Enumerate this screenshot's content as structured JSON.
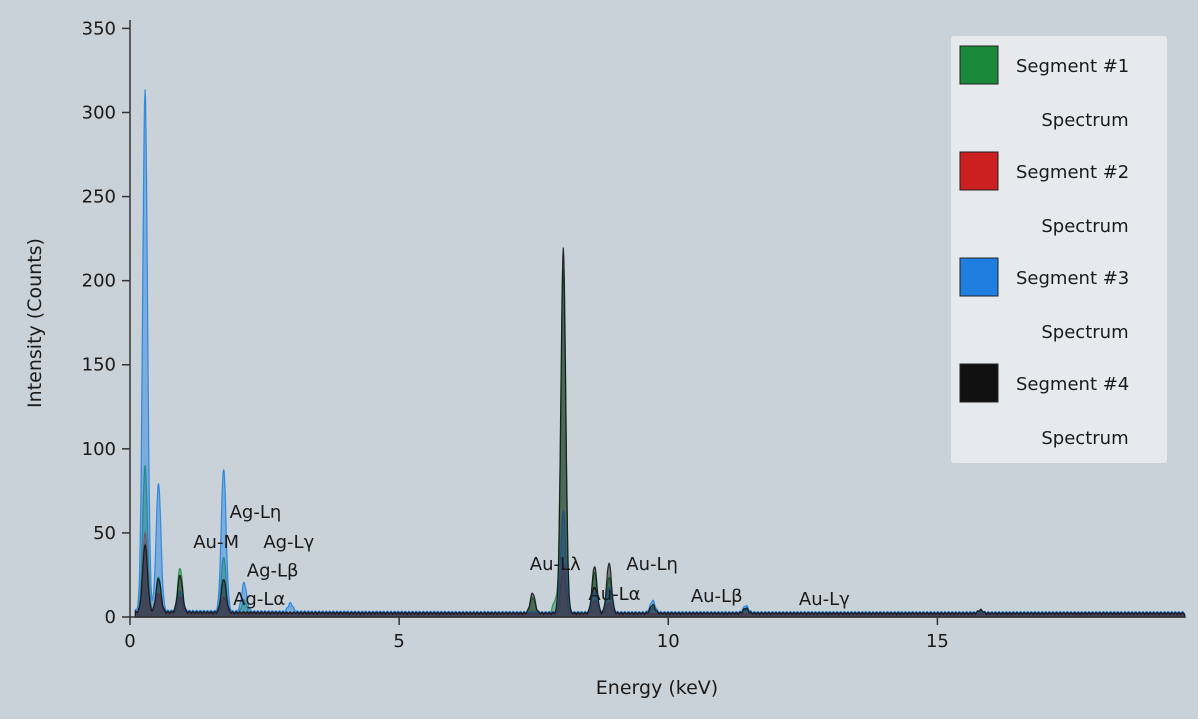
{
  "chart_data": {
    "type": "area",
    "xlabel": "Energy (keV)",
    "ylabel": "Intensity (Counts)",
    "xlim": [
      0,
      19.6
    ],
    "ylim": [
      0,
      355
    ],
    "x_ticks": [
      0,
      5,
      10,
      15
    ],
    "y_ticks": [
      0,
      50,
      100,
      150,
      200,
      250,
      300,
      350
    ],
    "grid": false,
    "legend_position": "top-right",
    "series": [
      {
        "name": "Segment #1 Spectrum",
        "color": "#1a8a3a",
        "baseline": 1,
        "peaks": [
          {
            "x": 0.28,
            "y": 88
          },
          {
            "x": 0.53,
            "y": 22
          },
          {
            "x": 0.93,
            "y": 27
          },
          {
            "x": 1.74,
            "y": 34
          },
          {
            "x": 2.12,
            "y": 8
          },
          {
            "x": 7.48,
            "y": 10
          },
          {
            "x": 7.9,
            "y": 8
          },
          {
            "x": 8.05,
            "y": 205
          },
          {
            "x": 8.63,
            "y": 25
          },
          {
            "x": 8.9,
            "y": 22
          },
          {
            "x": 9.71,
            "y": 4
          },
          {
            "x": 11.44,
            "y": 3
          },
          {
            "x": 15.8,
            "y": 2
          }
        ]
      },
      {
        "name": "Segment #2 Spectrum",
        "color": "#cc1f1f",
        "baseline": 1,
        "peaks": [
          {
            "x": 0.28,
            "y": 48
          },
          {
            "x": 0.53,
            "y": 12
          },
          {
            "x": 0.93,
            "y": 10
          },
          {
            "x": 1.74,
            "y": 10
          },
          {
            "x": 8.05,
            "y": 30
          },
          {
            "x": 8.63,
            "y": 8
          },
          {
            "x": 8.9,
            "y": 7
          }
        ]
      },
      {
        "name": "Segment #3 Spectrum",
        "color": "#1f7fe0",
        "baseline": 2,
        "peaks": [
          {
            "x": 0.28,
            "y": 310
          },
          {
            "x": 0.53,
            "y": 76
          },
          {
            "x": 0.93,
            "y": 12
          },
          {
            "x": 1.74,
            "y": 85
          },
          {
            "x": 2.12,
            "y": 17
          },
          {
            "x": 2.98,
            "y": 5
          },
          {
            "x": 8.05,
            "y": 60
          },
          {
            "x": 8.63,
            "y": 12
          },
          {
            "x": 8.9,
            "y": 15
          },
          {
            "x": 9.71,
            "y": 7
          },
          {
            "x": 11.44,
            "y": 4
          }
        ]
      },
      {
        "name": "Segment #4 Spectrum",
        "color": "#111111",
        "baseline": 1.5,
        "peaks": [
          {
            "x": 0.28,
            "y": 40
          },
          {
            "x": 0.53,
            "y": 20
          },
          {
            "x": 0.93,
            "y": 22
          },
          {
            "x": 1.74,
            "y": 20
          },
          {
            "x": 7.48,
            "y": 12
          },
          {
            "x": 8.05,
            "y": 217
          },
          {
            "x": 8.63,
            "y": 28
          },
          {
            "x": 8.9,
            "y": 30
          },
          {
            "x": 9.71,
            "y": 5
          },
          {
            "x": 11.44,
            "y": 3
          },
          {
            "x": 15.8,
            "y": 2
          }
        ]
      }
    ],
    "peak_labels": [
      {
        "text": "Ag-Lη",
        "x": 2.33,
        "y": 59
      },
      {
        "text": "Au-M",
        "x": 1.6,
        "y": 41
      },
      {
        "text": "Ag-Lγ",
        "x": 2.95,
        "y": 41
      },
      {
        "text": "Ag-Lβ",
        "x": 2.65,
        "y": 24
      },
      {
        "text": "Ag-Lα",
        "x": 2.4,
        "y": 7
      },
      {
        "text": "Au-Lλ",
        "x": 7.9,
        "y": 28
      },
      {
        "text": "Au-Lη",
        "x": 9.7,
        "y": 28
      },
      {
        "text": "Au-Lα",
        "x": 9.0,
        "y": 10
      },
      {
        "text": "Au-Lβ",
        "x": 10.9,
        "y": 9
      },
      {
        "text": "Au-Lγ",
        "x": 12.9,
        "y": 7
      }
    ]
  },
  "legend": [
    {
      "line1": "Segment #1",
      "line2": "Spectrum",
      "color": "#1a8a3a"
    },
    {
      "line1": "Segment #2",
      "line2": "Spectrum",
      "color": "#cc1f1f"
    },
    {
      "line1": "Segment #3",
      "line2": "Spectrum",
      "color": "#1f7fe0"
    },
    {
      "line1": "Segment #4",
      "line2": "Spectrum",
      "color": "#111111"
    }
  ]
}
